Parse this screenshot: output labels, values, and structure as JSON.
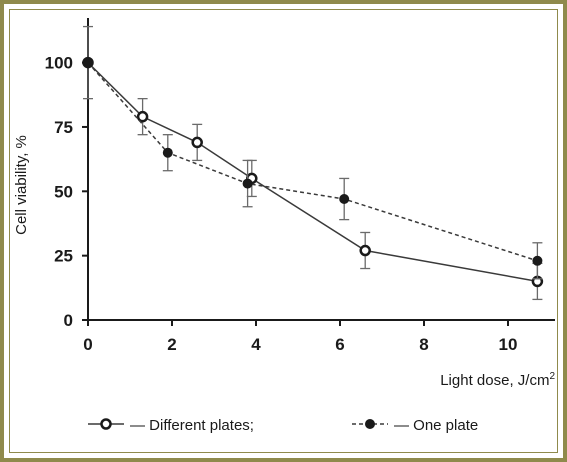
{
  "chart_data": {
    "type": "line",
    "xlabel": "Light dose, J/cm",
    "xlabel_superscript": "2",
    "ylabel": "Cell viability, %",
    "xlim": [
      0,
      11
    ],
    "ylim": [
      0,
      115
    ],
    "x_ticks": [
      "0",
      "2",
      "4",
      "6",
      "8",
      "10"
    ],
    "y_ticks": [
      "0",
      "25",
      "50",
      "75",
      "100"
    ],
    "grid": false,
    "legend_position": "bottom",
    "series": [
      {
        "name": "— Different plates;",
        "style": "solid",
        "marker": "open-circle",
        "x": [
          0,
          1.3,
          2.6,
          3.9,
          6.6,
          10.7
        ],
        "y": [
          100,
          79,
          69,
          55,
          27,
          15
        ],
        "err": [
          14,
          7,
          7,
          7,
          7,
          7
        ]
      },
      {
        "name": "— One plate",
        "style": "dashed",
        "marker": "filled-circle",
        "x": [
          0,
          1.9,
          3.8,
          6.1,
          10.7
        ],
        "y": [
          100,
          65,
          53,
          47,
          23
        ],
        "err": [
          0,
          7,
          9,
          8,
          7
        ]
      }
    ]
  },
  "colors": {
    "frame": "#8f8a4c",
    "line": "#3a3a3a",
    "errorbar": "#6a6a6a"
  }
}
